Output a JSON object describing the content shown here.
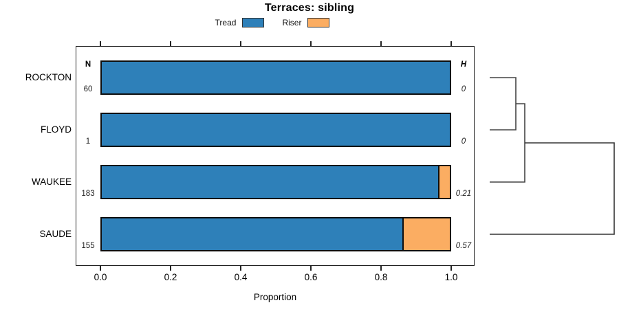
{
  "title": "Terraces: sibling",
  "legend": [
    {
      "label": "Tread",
      "color": "#2E80B9"
    },
    {
      "label": "Riser",
      "color": "#FBAD62"
    }
  ],
  "columns": {
    "n_header": "N",
    "h_header": "H"
  },
  "axis": {
    "label": "Proportion",
    "ticks": [
      "0.0",
      "0.2",
      "0.4",
      "0.6",
      "0.8",
      "1.0"
    ],
    "range": [
      0,
      1
    ]
  },
  "rows": [
    {
      "name": "ROCKTON",
      "n": "60",
      "h": "0",
      "tread": 1.0,
      "riser": 0.0
    },
    {
      "name": "FLOYD",
      "n": "1",
      "h": "0",
      "tread": 1.0,
      "riser": 0.0
    },
    {
      "name": "WAUKEE",
      "n": "183",
      "h": "0.21",
      "tread": 0.966,
      "riser": 0.034
    },
    {
      "name": "SAUDE",
      "n": "155",
      "h": "0.57",
      "tread": 0.864,
      "riser": 0.136
    }
  ],
  "chart_data": {
    "type": "bar",
    "orientation": "horizontal",
    "stacked": true,
    "title": "Terraces: sibling",
    "categories": [
      "ROCKTON",
      "FLOYD",
      "WAUKEE",
      "SAUDE"
    ],
    "series": [
      {
        "name": "Tread",
        "color": "#2E80B9",
        "values": [
          1.0,
          1.0,
          0.966,
          0.864
        ]
      },
      {
        "name": "Riser",
        "color": "#FBAD62",
        "values": [
          0.0,
          0.0,
          0.034,
          0.136
        ]
      }
    ],
    "sample_sizes_N": [
      60,
      1,
      183,
      155
    ],
    "heterozygosity_H": [
      0,
      0,
      0.21,
      0.57
    ],
    "xlabel": "Proportion",
    "xlim": [
      0.0,
      1.0
    ],
    "xticks": [
      0.0,
      0.2,
      0.4,
      0.6,
      0.8,
      1.0
    ],
    "grid": false,
    "legend_position": "top-center",
    "ticks_on_top_and_bottom": true,
    "dendrogram": {
      "side": "right",
      "leaves_top_to_bottom": [
        "ROCKTON",
        "FLOYD",
        "WAUKEE",
        "SAUDE"
      ],
      "merges": [
        {
          "members": [
            "ROCKTON",
            "FLOYD"
          ],
          "relative_height": 0.21
        },
        {
          "members": [
            "ROCKTON+FLOYD",
            "WAUKEE"
          ],
          "relative_height": 0.28
        },
        {
          "members": [
            "ROCKTON+FLOYD+WAUKEE",
            "SAUDE"
          ],
          "relative_height": 1.0
        }
      ]
    }
  }
}
